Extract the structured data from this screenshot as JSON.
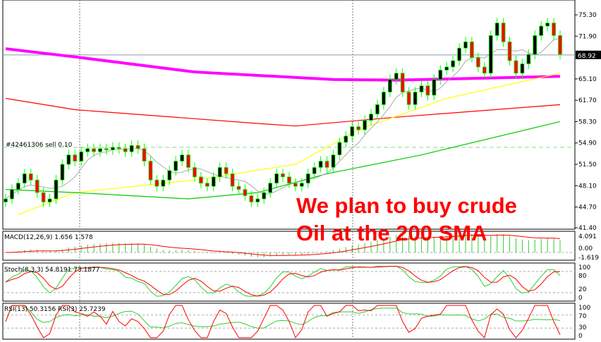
{
  "chart_data": {
    "type": "candlestick",
    "symbol_note": "",
    "price_axis": {
      "ticks": [
        "75.30",
        "71.90",
        "65.10",
        "61.70",
        "58.30",
        "54.90",
        "51.50",
        "48.10",
        "44.70",
        "41.40"
      ],
      "range": [
        41.4,
        76.5
      ]
    },
    "current_price": "68.92",
    "order_line": {
      "label": "#42461306 sell 0.10",
      "price": 54.2,
      "color": "#00cc00"
    },
    "annotation": [
      "We plan to buy crude",
      "Oil at the 200 SMA"
    ],
    "closes": [
      46.0,
      47.5,
      48.5,
      50,
      49,
      47,
      45.5,
      46,
      49,
      51.5,
      53,
      52,
      53.5,
      54,
      53.5,
      54,
      53.8,
      54.2,
      54,
      53.5,
      54.5,
      54,
      52,
      49,
      48,
      49,
      50.5,
      52,
      53,
      51,
      49.5,
      48.5,
      48,
      49.5,
      51,
      50,
      48,
      47.5,
      46.5,
      45.5,
      46,
      47,
      48.5,
      50,
      49.5,
      48.5,
      48,
      48.5,
      50,
      51,
      52,
      51,
      53,
      55,
      56,
      57.5,
      57,
      58.5,
      59.5,
      61,
      63,
      65,
      66,
      63,
      61,
      63,
      64,
      62.5,
      65,
      66.5,
      67,
      68,
      70,
      71,
      68.5,
      67,
      66,
      72,
      74,
      71,
      68,
      66,
      67.5,
      69,
      72,
      73.5,
      74,
      72,
      69
    ],
    "moving_averages": [
      {
        "color": "#ff00ff",
        "points": [
          [
            0,
            69.9
          ],
          [
            11,
            68.6
          ],
          [
            30,
            66.2
          ],
          [
            52,
            65.0
          ],
          [
            62,
            64.9
          ],
          [
            88,
            65.5
          ]
        ]
      },
      {
        "color": "#ff0000",
        "points": [
          [
            0,
            62.0
          ],
          [
            11,
            60.2
          ],
          [
            40,
            58.0
          ],
          [
            46,
            57.6
          ],
          [
            62,
            59.0
          ],
          [
            88,
            61.0
          ]
        ]
      },
      {
        "color": "#ffff00",
        "points": [
          [
            2,
            43.5
          ],
          [
            11,
            47.0
          ],
          [
            30,
            49.0
          ],
          [
            46,
            51.5
          ],
          [
            56,
            57.0
          ],
          [
            70,
            62.0
          ],
          [
            88,
            66.0
          ]
        ]
      },
      {
        "color": "#00cc00",
        "points": [
          [
            0,
            47.5
          ],
          [
            11,
            47.0
          ],
          [
            29,
            46.0
          ],
          [
            40,
            47.0
          ],
          [
            51,
            50.0
          ],
          [
            66,
            53.0
          ],
          [
            88,
            58.3
          ]
        ]
      }
    ],
    "macd": {
      "label": "MACD(12,26,9) 1.656 1.578",
      "ticks": [
        "4.091",
        "0.00",
        "-1.619"
      ]
    },
    "stoch": {
      "label": "Stoch(8,3,3) 54.8191 73.1877",
      "ticks": [
        "100",
        "80",
        "20",
        "0"
      ]
    },
    "rsi": {
      "label": "RSI(13) 50.3156  RSI(3) 25.7239",
      "ticks": [
        "100",
        "70",
        "30",
        "0"
      ]
    },
    "colors": {
      "up": "#000000",
      "down": "#ff0000",
      "wick": "#00ff00",
      "grid_line": "#8899aa"
    }
  }
}
